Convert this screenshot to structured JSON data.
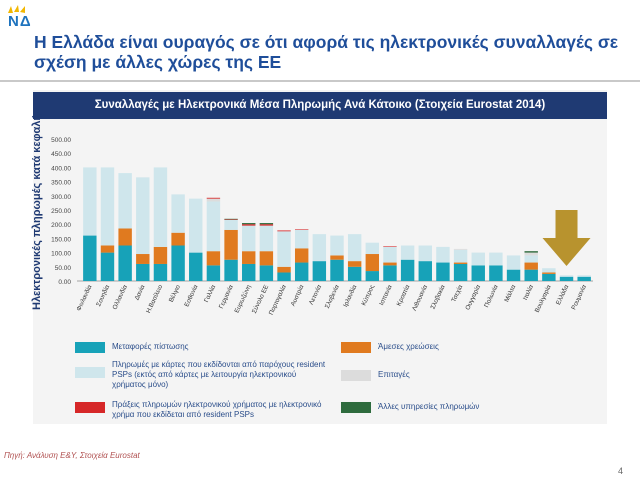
{
  "brand": {
    "logo_text": "ΝΔ",
    "sun_color": "#f2b700"
  },
  "slide": {
    "title": "Η Ελλάδα είναι ουραγός σε ότι αφορά τις ηλεκτρονικές συναλλαγές σε σχέση με άλλες χώρες της ΕΕ",
    "source": "Πηγή: Ανάλυση E&Y, Στοιχεία Eurostat",
    "page_number": "4"
  },
  "chart_data": {
    "type": "bar",
    "stacked": true,
    "title": "Συναλλαγές με Ηλεκτρονικά Μέσα Πληρωμής Ανά Κάτοικο (Στοιχεία Eurostat 2014)",
    "ylabel": "Ηλεκτρονικές πληρωμές κατά κεφαλήν",
    "ylim": [
      0,
      500
    ],
    "yticks": [
      0,
      50,
      100,
      150,
      200,
      250,
      300,
      350,
      400,
      450,
      500
    ],
    "grid": false,
    "legend_position": "bottom",
    "highlight_category": "Ελλάδα",
    "categories": [
      "Φινλανδία",
      "Σουηδία",
      "Ολλανδία",
      "Δανία",
      "Η.Βασίλειο",
      "Βέλγιο",
      "Εσθονία",
      "Γαλλία",
      "Γερμανία",
      "Ευρωζώνη",
      "Σύνολο ΕΕ",
      "Πορτογαλία",
      "Αυστρία",
      "Λετονία",
      "Σλοβενία",
      "Ιρλανδία",
      "Κύπρος",
      "Ισπανία",
      "Κροατία",
      "Λιθουανία",
      "Σλοβακία",
      "Τσεχία",
      "Ουγγαρία",
      "Πολωνία",
      "Μάλτα",
      "Ιταλία",
      "Βουλγαρία",
      "Ελλάδα",
      "Ρουμανία"
    ],
    "series": [
      {
        "name": "Μεταφορές πίστωσης",
        "color": "#17a2b8",
        "values": [
          160,
          100,
          125,
          60,
          60,
          125,
          100,
          55,
          75,
          60,
          55,
          30,
          65,
          70,
          75,
          50,
          35,
          55,
          75,
          70,
          65,
          60,
          55,
          55,
          40,
          40,
          25,
          15,
          15
        ]
      },
      {
        "name": "Άμεσες χρεώσεις",
        "color": "#e07a1f",
        "values": [
          0,
          25,
          60,
          35,
          60,
          45,
          0,
          50,
          105,
          45,
          50,
          20,
          50,
          0,
          15,
          20,
          60,
          10,
          0,
          0,
          0,
          5,
          0,
          0,
          0,
          25,
          5,
          0,
          0
        ]
      },
      {
        "name": "Πληρωμές με κάρτες που εκδίδονται από παρόχους resident PSPs (εκτός από κάρτες με λειτουργία ηλεκτρονικού χρήματος μόνο)",
        "color": "#cfe6ec",
        "values": [
          240,
          275,
          195,
          270,
          280,
          135,
          190,
          175,
          35,
          90,
          90,
          125,
          65,
          95,
          70,
          95,
          40,
          55,
          50,
          55,
          55,
          45,
          45,
          45,
          50,
          25,
          15,
          5,
          5
        ]
      },
      {
        "name": "Επιταγές",
        "color": "#dcdcdc",
        "values": [
          0,
          0,
          0,
          0,
          0,
          0,
          0,
          10,
          0,
          0,
          0,
          0,
          0,
          0,
          0,
          0,
          0,
          0,
          0,
          0,
          0,
          3,
          0,
          0,
          0,
          10,
          0,
          0,
          0
        ]
      },
      {
        "name": "Πράξεις πληρωμών ηλεκτρονικού χρήματος με ηλεκτρονικό χρήμα που εκδίδεται από resident PSPs",
        "color": "#d62728",
        "values": [
          0,
          0,
          0,
          0,
          0,
          0,
          0,
          3,
          2,
          5,
          5,
          3,
          2,
          0,
          0,
          0,
          0,
          2,
          0,
          0,
          0,
          0,
          0,
          0,
          0,
          0,
          0,
          0,
          0
        ]
      },
      {
        "name": "Άλλες υπηρεσίες πληρωμών",
        "color": "#2e6b3d",
        "values": [
          0,
          0,
          0,
          0,
          0,
          0,
          0,
          0,
          2,
          4,
          4,
          0,
          0,
          0,
          0,
          0,
          0,
          0,
          0,
          0,
          0,
          0,
          0,
          0,
          0,
          5,
          0,
          0,
          0
        ]
      }
    ]
  }
}
